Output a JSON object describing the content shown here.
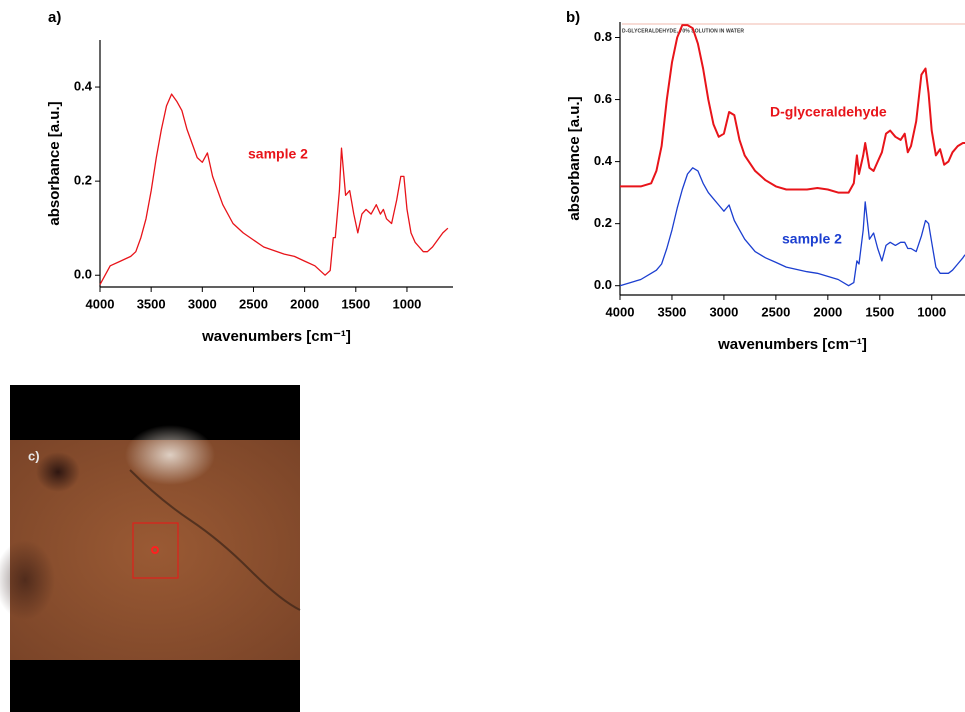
{
  "chart_data": [
    {
      "type": "line",
      "panel_label": "a)",
      "x_label": "wavenumbers [cm⁻¹]",
      "y_label": "absorbance [a.u.]",
      "x": [
        4000,
        3900,
        3800,
        3700,
        3650,
        3600,
        3550,
        3500,
        3450,
        3400,
        3350,
        3300,
        3250,
        3200,
        3150,
        3100,
        3050,
        3000,
        2950,
        2900,
        2850,
        2800,
        2700,
        2600,
        2500,
        2400,
        2200,
        2100,
        2000,
        1900,
        1800,
        1750,
        1720,
        1700,
        1660,
        1640,
        1600,
        1560,
        1520,
        1480,
        1440,
        1400,
        1350,
        1300,
        1260,
        1230,
        1200,
        1150,
        1100,
        1060,
        1030,
        1000,
        960,
        920,
        880,
        840,
        800,
        750,
        650,
        600
      ],
      "series": [
        {
          "name": "sample 2",
          "color": "#e8141a",
          "values": [
            -0.02,
            0.02,
            0.03,
            0.04,
            0.05,
            0.08,
            0.12,
            0.18,
            0.25,
            0.31,
            0.36,
            0.385,
            0.37,
            0.35,
            0.31,
            0.28,
            0.25,
            0.24,
            0.26,
            0.21,
            0.18,
            0.15,
            0.11,
            0.09,
            0.075,
            0.06,
            0.045,
            0.04,
            0.03,
            0.02,
            0.0,
            0.01,
            0.08,
            0.08,
            0.18,
            0.27,
            0.17,
            0.18,
            0.13,
            0.09,
            0.13,
            0.14,
            0.13,
            0.15,
            0.13,
            0.14,
            0.12,
            0.11,
            0.16,
            0.21,
            0.21,
            0.14,
            0.09,
            0.07,
            0.06,
            0.05,
            0.05,
            0.06,
            0.09,
            0.1
          ]
        }
      ],
      "xlim": [
        4000,
        550
      ],
      "xticks": [
        4000,
        3500,
        3000,
        2500,
        2000,
        1500,
        1000
      ],
      "ylim": [
        -0.025,
        0.5
      ],
      "yticks": [
        {
          "value": 0,
          "label": "0.0"
        },
        0.2,
        0.4
      ]
    },
    {
      "type": "line",
      "panel_label": "b)",
      "x_label": "wavenumbers [cm⁻¹]",
      "y_label": "absorbance [a.u.]",
      "annotation": "D-GLYCERALDEHYDE, 70% SOLUTION IN WATER",
      "x": [
        4000,
        3900,
        3800,
        3700,
        3650,
        3600,
        3550,
        3500,
        3450,
        3400,
        3350,
        3300,
        3250,
        3200,
        3150,
        3100,
        3050,
        3000,
        2950,
        2900,
        2850,
        2800,
        2700,
        2600,
        2500,
        2400,
        2200,
        2100,
        2000,
        1900,
        1800,
        1750,
        1720,
        1700,
        1660,
        1640,
        1600,
        1560,
        1520,
        1480,
        1440,
        1400,
        1350,
        1300,
        1260,
        1230,
        1200,
        1150,
        1100,
        1060,
        1030,
        1000,
        960,
        920,
        880,
        840,
        800,
        750,
        700,
        680
      ],
      "series": [
        {
          "name": "D-glyceraldehyde",
          "color": "#e8141a",
          "values": [
            0.32,
            0.32,
            0.32,
            0.33,
            0.37,
            0.45,
            0.6,
            0.72,
            0.8,
            0.84,
            0.84,
            0.83,
            0.78,
            0.7,
            0.6,
            0.52,
            0.48,
            0.49,
            0.56,
            0.55,
            0.47,
            0.42,
            0.37,
            0.34,
            0.32,
            0.31,
            0.31,
            0.315,
            0.31,
            0.3,
            0.3,
            0.33,
            0.42,
            0.36,
            0.42,
            0.46,
            0.38,
            0.37,
            0.4,
            0.43,
            0.49,
            0.5,
            0.48,
            0.47,
            0.49,
            0.43,
            0.45,
            0.53,
            0.68,
            0.7,
            0.62,
            0.5,
            0.42,
            0.44,
            0.39,
            0.4,
            0.43,
            0.45,
            0.46,
            0.46
          ]
        },
        {
          "name": "sample 2",
          "color": "#1c3fd0",
          "values": [
            0.0,
            0.01,
            0.02,
            0.04,
            0.05,
            0.07,
            0.12,
            0.18,
            0.25,
            0.31,
            0.36,
            0.38,
            0.37,
            0.33,
            0.3,
            0.28,
            0.26,
            0.24,
            0.26,
            0.21,
            0.18,
            0.15,
            0.11,
            0.09,
            0.075,
            0.06,
            0.045,
            0.04,
            0.03,
            0.02,
            0.0,
            0.01,
            0.08,
            0.07,
            0.18,
            0.27,
            0.15,
            0.17,
            0.12,
            0.08,
            0.13,
            0.14,
            0.13,
            0.14,
            0.14,
            0.12,
            0.12,
            0.11,
            0.16,
            0.21,
            0.2,
            0.14,
            0.06,
            0.04,
            0.04,
            0.04,
            0.05,
            0.07,
            0.09,
            0.1
          ]
        }
      ],
      "xlim": [
        4000,
        680
      ],
      "xticks": [
        4000,
        3500,
        3000,
        2500,
        2000,
        1500,
        1000
      ],
      "ylim": [
        -0.03,
        0.85
      ],
      "yticks": [
        {
          "value": 0,
          "label": "0.0"
        },
        0.2,
        0.4,
        0.6,
        0.8
      ]
    }
  ],
  "photo": {
    "panel_label": "c)"
  }
}
